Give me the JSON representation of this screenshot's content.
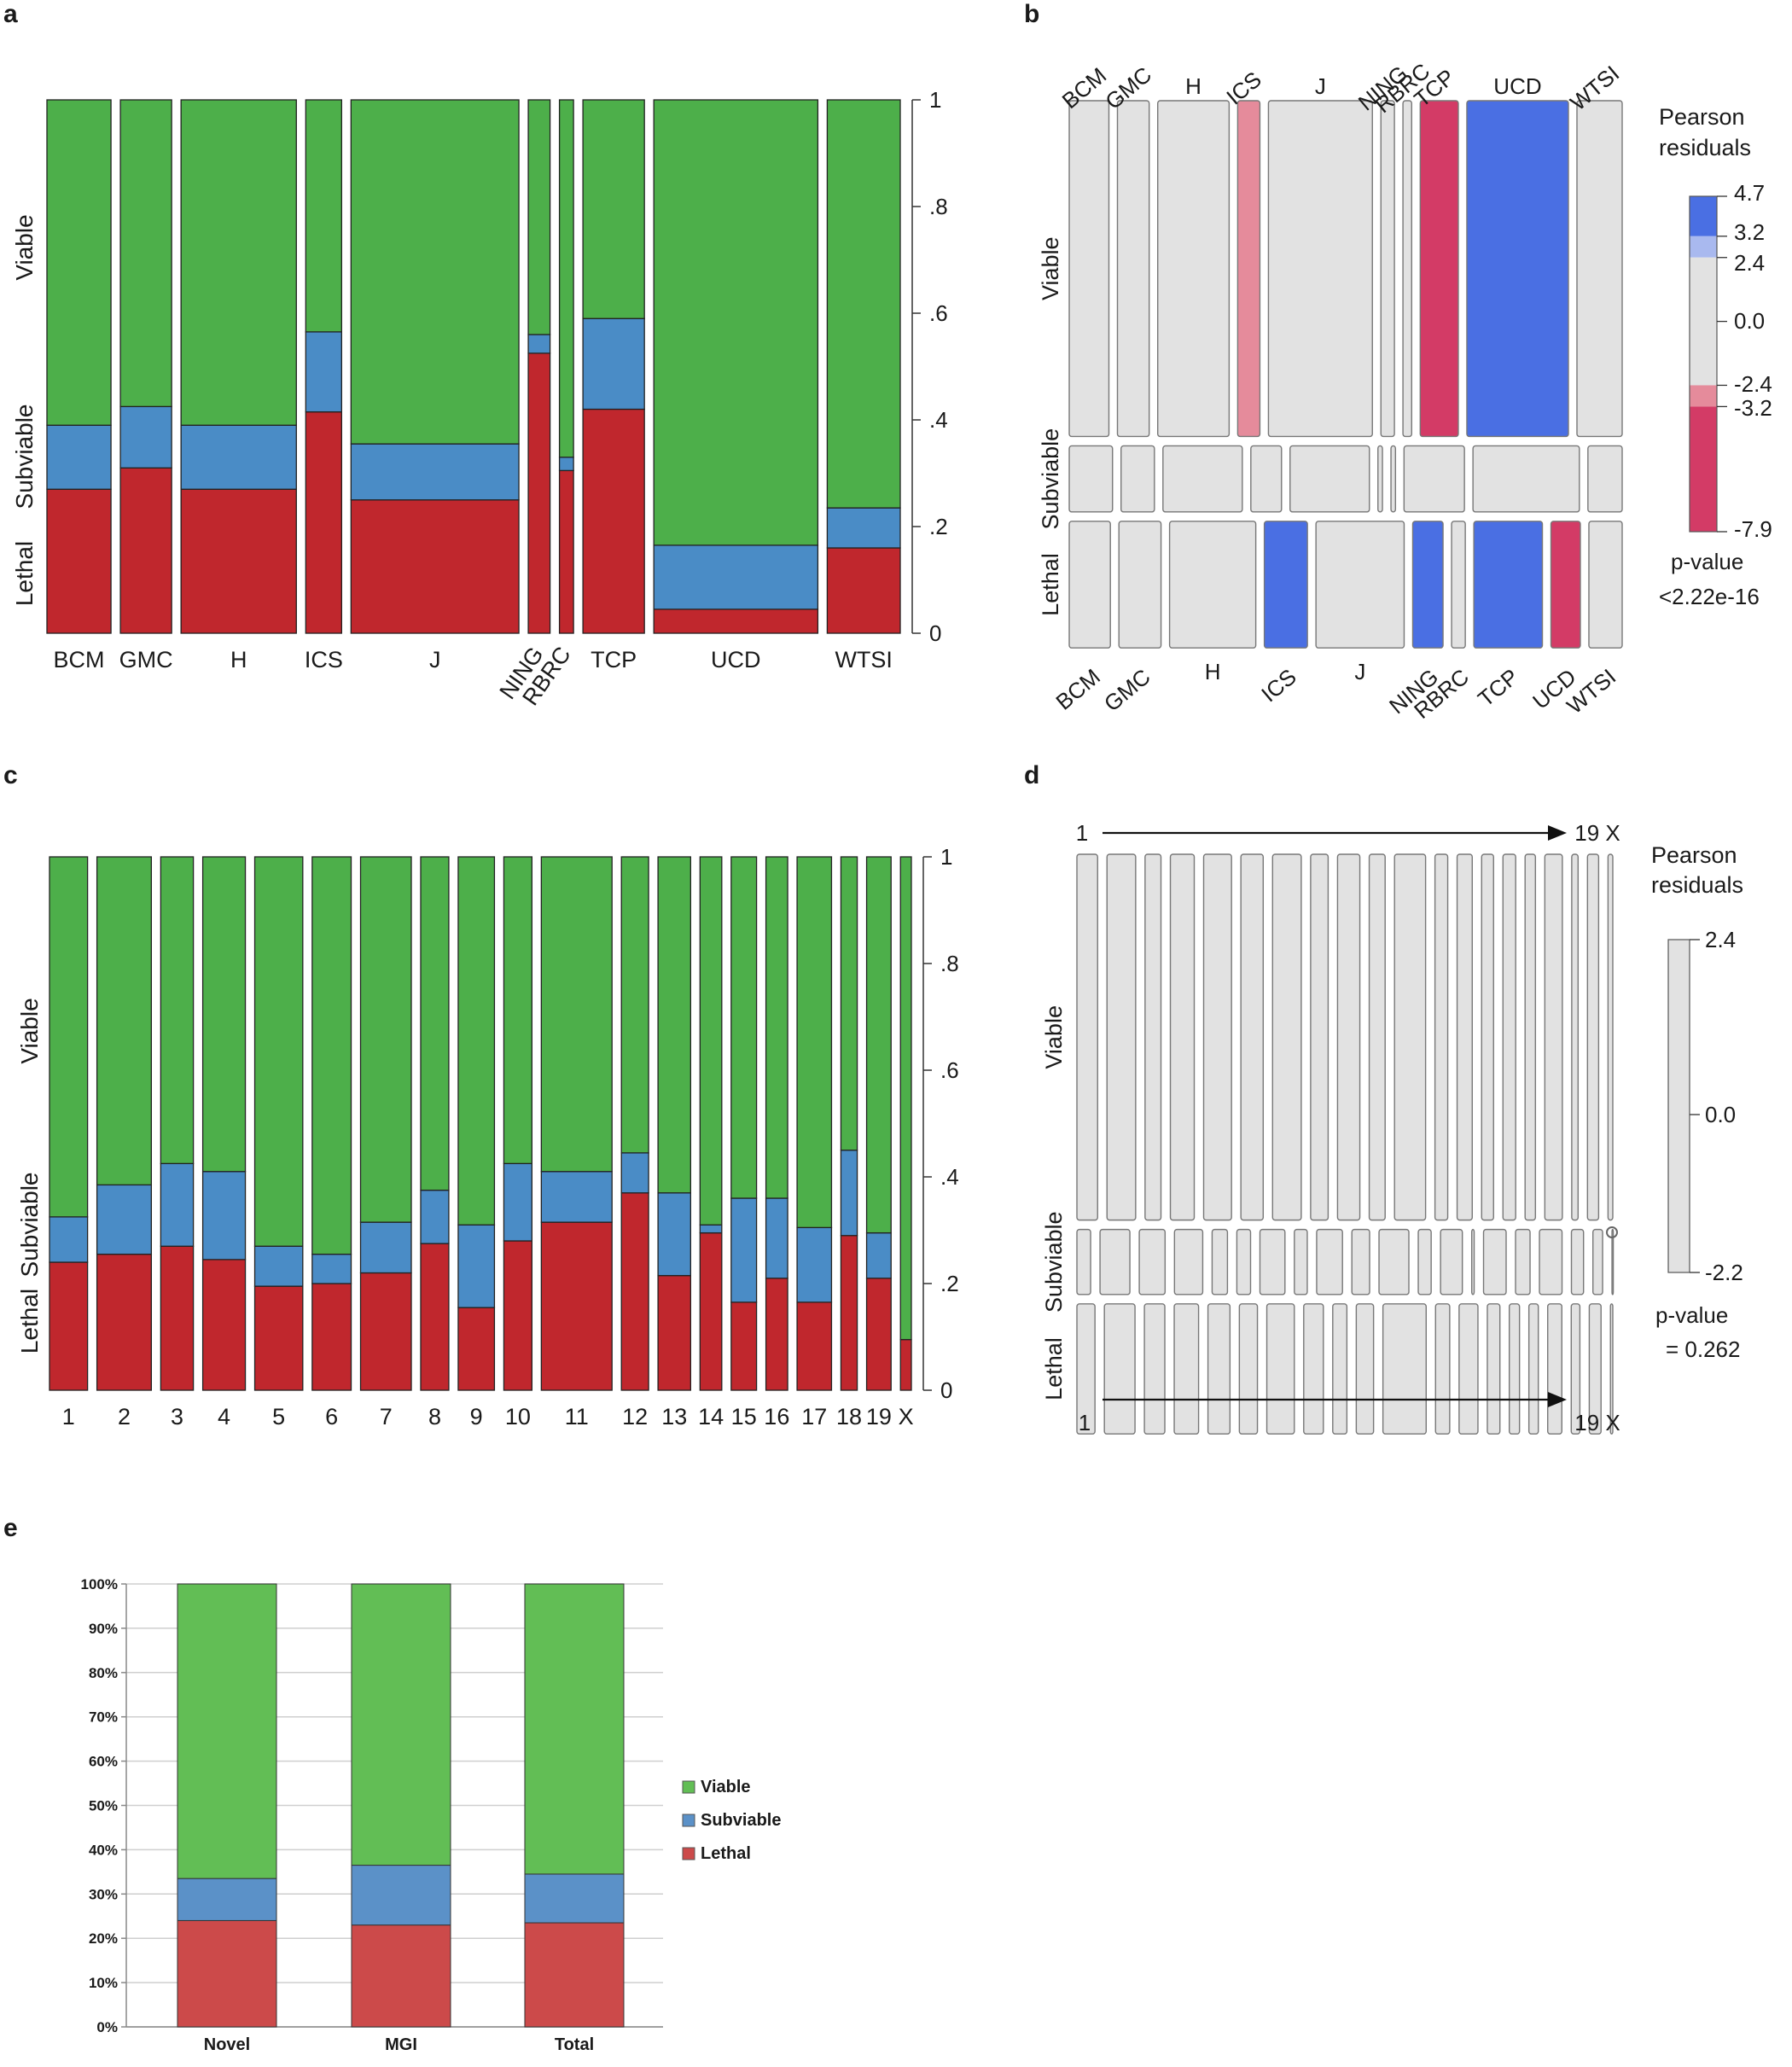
{
  "colors": {
    "viable": "#4daf4a",
    "subviable": "#4a8cc6",
    "lethal": "#c0272d",
    "e_viable": "#62be55",
    "e_subviable": "#5b91c8",
    "e_lethal": "#cc4a4a",
    "resid_gray": "#e2e2e2",
    "resid_blue": "#4a6fe3",
    "resid_lightblue": "#a9b9ef",
    "resid_pink": "#e58b9b",
    "resid_red": "#d33b66"
  },
  "chart_data": [
    {
      "id": "a",
      "panel_label": "a",
      "type": "spinogram",
      "title": "",
      "y_label_groups": [
        "Viable",
        "Subviable",
        "Lethal"
      ],
      "yaxis_ticks": [
        "1",
        ".8",
        ".6",
        ".4",
        ".2",
        "0"
      ],
      "ylim": [
        0,
        1
      ],
      "categories": [
        "BCM",
        "GMC",
        "H",
        "ICS",
        "J",
        "NING",
        "RBRC",
        "TCP",
        "UCD",
        "WTSI"
      ],
      "rotated_labels": [
        "NING",
        "RBRC"
      ],
      "relative_widths": [
        50,
        40,
        90,
        28,
        131,
        17,
        11,
        48,
        128,
        57
      ],
      "series": [
        {
          "name": "Lethal",
          "values": [
            0.27,
            0.31,
            0.27,
            0.415,
            0.25,
            0.525,
            0.305,
            0.42,
            0.045,
            0.16
          ]
        },
        {
          "name": "Subviable",
          "values": [
            0.12,
            0.115,
            0.12,
            0.15,
            0.105,
            0.035,
            0.025,
            0.17,
            0.12,
            0.075
          ]
        },
        {
          "name": "Viable",
          "values": [
            0.61,
            0.575,
            0.61,
            0.435,
            0.645,
            0.44,
            0.67,
            0.41,
            0.835,
            0.765
          ]
        }
      ]
    },
    {
      "id": "b",
      "panel_label": "b",
      "type": "mosaic_residuals",
      "y_label_groups": [
        "Viable",
        "Subviable",
        "Lethal"
      ],
      "categories": [
        "BCM",
        "GMC",
        "H",
        "ICS",
        "J",
        "NING",
        "RBRC",
        "TCP",
        "UCD",
        "WTSI"
      ],
      "top_labels": [
        "BCM",
        "GMC",
        "H",
        "ICS",
        "J",
        "NING",
        "RBRC",
        "TCP",
        "UCD",
        "WTSI"
      ],
      "bottom_labels": [
        "BCM",
        "GMC",
        "H",
        "ICS",
        "J",
        "NING",
        "RBRC",
        "TCP",
        "UCD",
        "WTSI"
      ],
      "row_heights": [
        0.61,
        0.12,
        0.23
      ],
      "rows": {
        "Viable": {
          "widths": [
            50,
            40,
            90,
            28,
            131,
            17,
            11,
            48,
            128,
            57
          ],
          "shade": [
            "gray",
            "gray",
            "gray",
            "pink",
            "gray",
            "gray",
            "gray",
            "red",
            "blue",
            "gray"
          ]
        },
        "Subviable": {
          "widths": [
            48,
            37,
            88,
            34,
            88,
            5,
            5,
            67,
            118,
            38
          ],
          "shade": [
            "gray",
            "gray",
            "gray",
            "gray",
            "gray",
            "gray",
            "gray",
            "gray",
            "gray",
            "gray"
          ]
        },
        "Lethal": {
          "widths": [
            42,
            43,
            88,
            44,
            90,
            31,
            14,
            70,
            30,
            34
          ],
          "shade": [
            "gray",
            "gray",
            "gray",
            "blue",
            "gray",
            "blue",
            "gray",
            "blue",
            "red",
            "gray"
          ]
        }
      },
      "legend": {
        "title_line1": "Pearson",
        "title_line2": "residuals",
        "ticks": [
          "4.7",
          "3.2",
          "2.4",
          "0.0",
          "-2.4",
          "-3.2",
          "-7.9"
        ],
        "tick_values": [
          4.7,
          3.2,
          2.4,
          0.0,
          -2.4,
          -3.2,
          -7.9
        ],
        "range": [
          -7.9,
          4.7
        ],
        "pvalue_label": "p-value",
        "pvalue": "<2.22e-16"
      }
    },
    {
      "id": "c",
      "panel_label": "c",
      "type": "spinogram",
      "y_label_groups": [
        "Viable",
        "Subviable",
        "Lethal"
      ],
      "yaxis_ticks": [
        "1",
        ".8",
        ".6",
        ".4",
        ".2",
        "0"
      ],
      "ylim": [
        0,
        1
      ],
      "categories": [
        "1",
        "2",
        "3",
        "4",
        "5",
        "6",
        "7",
        "8",
        "9",
        "10",
        "11",
        "12",
        "13",
        "14",
        "15",
        "16",
        "17",
        "18",
        "19",
        "X"
      ],
      "relative_widths": [
        42,
        60,
        36,
        47,
        53,
        43,
        56,
        31,
        40,
        31,
        78,
        30,
        36,
        24,
        28,
        24,
        38,
        18,
        27,
        12
      ],
      "series": [
        {
          "name": "Lethal",
          "values": [
            0.24,
            0.255,
            0.27,
            0.245,
            0.195,
            0.2,
            0.22,
            0.275,
            0.155,
            0.28,
            0.315,
            0.37,
            0.215,
            0.295,
            0.165,
            0.21,
            0.165,
            0.29,
            0.21,
            0.095
          ]
        },
        {
          "name": "Subviable",
          "values": [
            0.085,
            0.13,
            0.155,
            0.165,
            0.075,
            0.055,
            0.095,
            0.1,
            0.155,
            0.145,
            0.095,
            0.075,
            0.155,
            0.015,
            0.195,
            0.15,
            0.14,
            0.16,
            0.085,
            0.0
          ]
        },
        {
          "name": "Viable",
          "values": [
            0.675,
            0.615,
            0.575,
            0.59,
            0.73,
            0.745,
            0.685,
            0.625,
            0.69,
            0.575,
            0.59,
            0.555,
            0.63,
            0.69,
            0.64,
            0.64,
            0.695,
            0.55,
            0.705,
            0.905
          ]
        }
      ]
    },
    {
      "id": "d",
      "panel_label": "d",
      "type": "mosaic_residuals",
      "y_label_groups": [
        "Viable",
        "Subviable",
        "Lethal"
      ],
      "top_arrow": {
        "start": "1",
        "end": "19 X"
      },
      "bottom_arrow": {
        "start": "1",
        "end": "19 X"
      },
      "row_heights": [
        0.675,
        0.12,
        0.24
      ],
      "rows": {
        "Viable": {
          "widths": [
            26,
            36,
            20,
            30,
            35,
            28,
            36,
            22,
            28,
            20,
            39,
            16,
            19,
            15,
            16,
            13,
            22,
            8,
            14,
            6
          ]
        },
        "Subviable": {
          "widths": [
            17,
            37,
            32,
            35,
            19,
            17,
            31,
            16,
            32,
            22,
            37,
            16,
            27,
            3,
            28,
            18,
            28,
            15,
            12,
            1
          ]
        },
        "Lethal": {
          "widths": [
            23,
            39,
            26,
            31,
            28,
            23,
            35,
            25,
            18,
            22,
            55,
            18,
            24,
            16,
            13,
            12,
            18,
            11,
            15,
            3
          ]
        }
      },
      "legend": {
        "title_line1": "Pearson",
        "title_line2": "residuals",
        "ticks": [
          "2.4",
          "0.0",
          "-2.2"
        ],
        "tick_values": [
          2.4,
          0.0,
          -2.2
        ],
        "range": [
          -2.2,
          2.4
        ],
        "pvalue_label": "p-value",
        "pvalue": "= 0.262"
      }
    },
    {
      "id": "e",
      "panel_label": "e",
      "type": "bar",
      "stacked": true,
      "categories": [
        "Novel",
        "MGI",
        "Total"
      ],
      "yaxis_ticks": [
        "100%",
        "90%",
        "80%",
        "70%",
        "60%",
        "50%",
        "40%",
        "30%",
        "20%",
        "10%",
        "0%"
      ],
      "ylim": [
        0,
        100
      ],
      "grid": true,
      "legend_position": "right",
      "series": [
        {
          "name": "Lethal",
          "values": [
            24,
            23,
            23.5
          ]
        },
        {
          "name": "Subviable",
          "values": [
            9.5,
            13.5,
            11
          ]
        },
        {
          "name": "Viable",
          "values": [
            66.5,
            63.5,
            65.5
          ]
        }
      ],
      "legend": [
        "Viable",
        "Subviable",
        "Lethal"
      ]
    }
  ]
}
